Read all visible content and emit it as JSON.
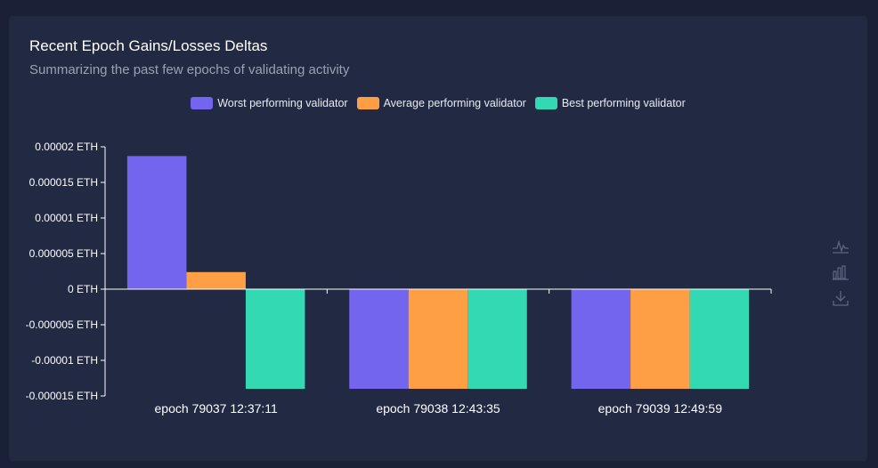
{
  "card": {
    "title": "Recent Epoch Gains/Losses Deltas",
    "subtitle": "Summarizing the past few epochs of validating activity"
  },
  "toolbar": {
    "icons": [
      "line-chart-icon",
      "bar-chart-icon",
      "download-icon"
    ]
  },
  "colors": {
    "worst": "#7465ee",
    "average": "#ff9f45",
    "best": "#33d9b2",
    "axis": "#ffffff",
    "text": "#ffffff",
    "toolbar": "#5d6580"
  },
  "chart_data": {
    "type": "bar",
    "title": "Recent Epoch Gains/Losses Deltas",
    "subtitle": "Summarizing the past few epochs of validating activity",
    "categories": [
      "epoch 79037 12:37:11",
      "epoch 79038 12:43:35",
      "epoch 79039 12:49:59"
    ],
    "series": [
      {
        "name": "Worst performing validator",
        "values": [
          1.87e-05,
          -1.4e-05,
          -1.4e-05
        ]
      },
      {
        "name": "Average performing validator",
        "values": [
          2.4e-06,
          -1.4e-05,
          -1.4e-05
        ]
      },
      {
        "name": "Best performing validator",
        "values": [
          -1.4e-05,
          -1.4e-05,
          -1.4e-05
        ]
      }
    ],
    "ylim": [
      -1.5e-05,
      2e-05
    ],
    "yticks": [
      2e-05,
      1.5e-05,
      1e-05,
      5e-06,
      0,
      -5e-06,
      -1e-05,
      -1.5e-05
    ],
    "ytick_labels": [
      "0.00002 ETH",
      "0.000015 ETH",
      "0.00001 ETH",
      "0.000005 ETH",
      "0 ETH",
      "-0.000005 ETH",
      "-0.00001 ETH",
      "-0.000015 ETH"
    ],
    "xlabel": "",
    "ylabel": "",
    "legend_position": "top-center",
    "grid": false
  }
}
